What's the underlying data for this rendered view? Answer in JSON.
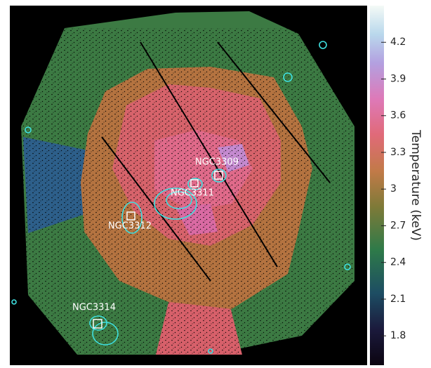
{
  "chart_data": {
    "type": "image-map",
    "annotations": [
      "NGC3309",
      "NGC3311",
      "NGC3312",
      "NGC3314"
    ],
    "colorbar": {
      "label": "Temperature (keV)",
      "clim": [
        1.56,
        4.5
      ],
      "ticks": [
        1.8,
        2.1,
        2.4,
        2.7,
        3,
        3.3,
        3.6,
        3.9,
        4.2
      ]
    }
  }
}
